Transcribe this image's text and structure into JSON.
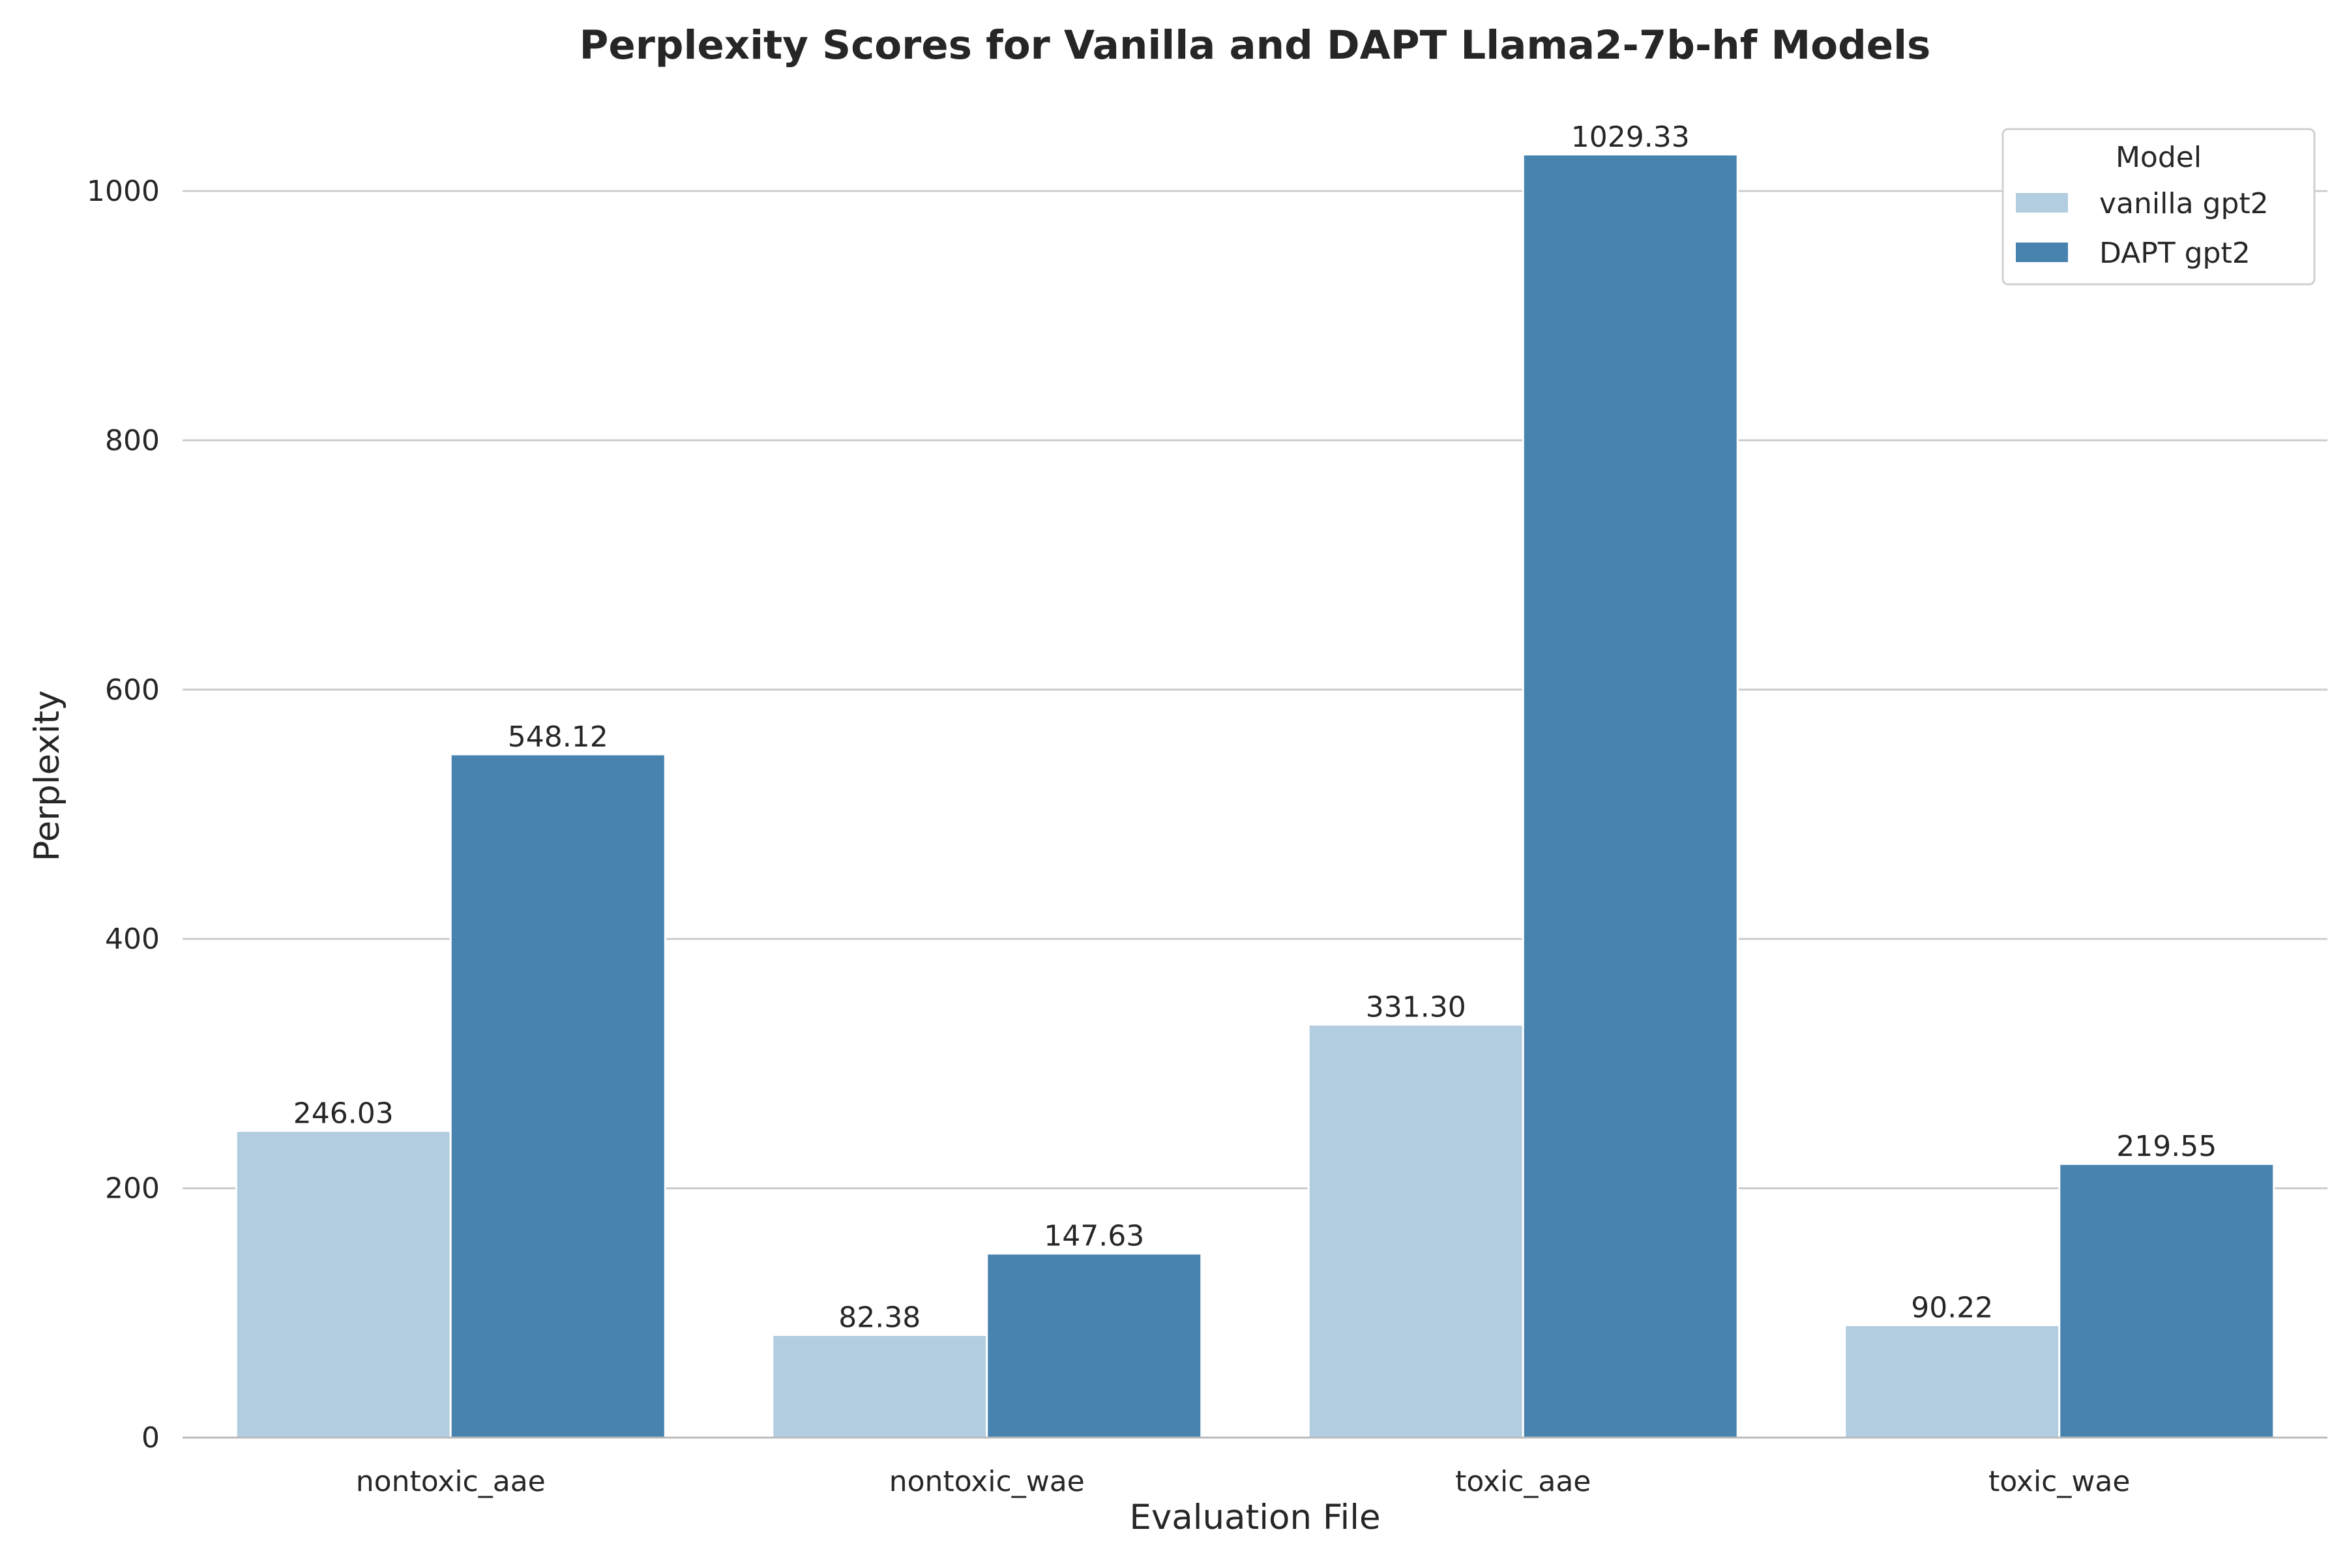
{
  "chart_data": {
    "type": "bar",
    "title": "Perplexity Scores for Vanilla and DAPT Llama2-7b-hf Models",
    "xlabel": "Evaluation File",
    "ylabel": "Perplexity",
    "categories": [
      "nontoxic_aae",
      "nontoxic_wae",
      "toxic_aae",
      "toxic_wae"
    ],
    "series": [
      {
        "name": "vanilla gpt2",
        "color": "#b3cde0",
        "values": [
          246.03,
          82.38,
          331.3,
          90.22
        ],
        "labels": [
          "246.03",
          "82.38",
          "331.30",
          "90.22"
        ]
      },
      {
        "name": "DAPT gpt2",
        "color": "#4883b0",
        "values": [
          548.12,
          147.63,
          1029.33,
          219.55
        ],
        "labels": [
          "548.12",
          "147.63",
          "1029.33",
          "219.55"
        ]
      }
    ],
    "ylim": [
      0,
      1080
    ],
    "yticks": [
      0,
      200,
      400,
      600,
      800,
      1000
    ],
    "grid": "horizontal",
    "legend": {
      "title": "Model",
      "placement": "top-right"
    }
  }
}
